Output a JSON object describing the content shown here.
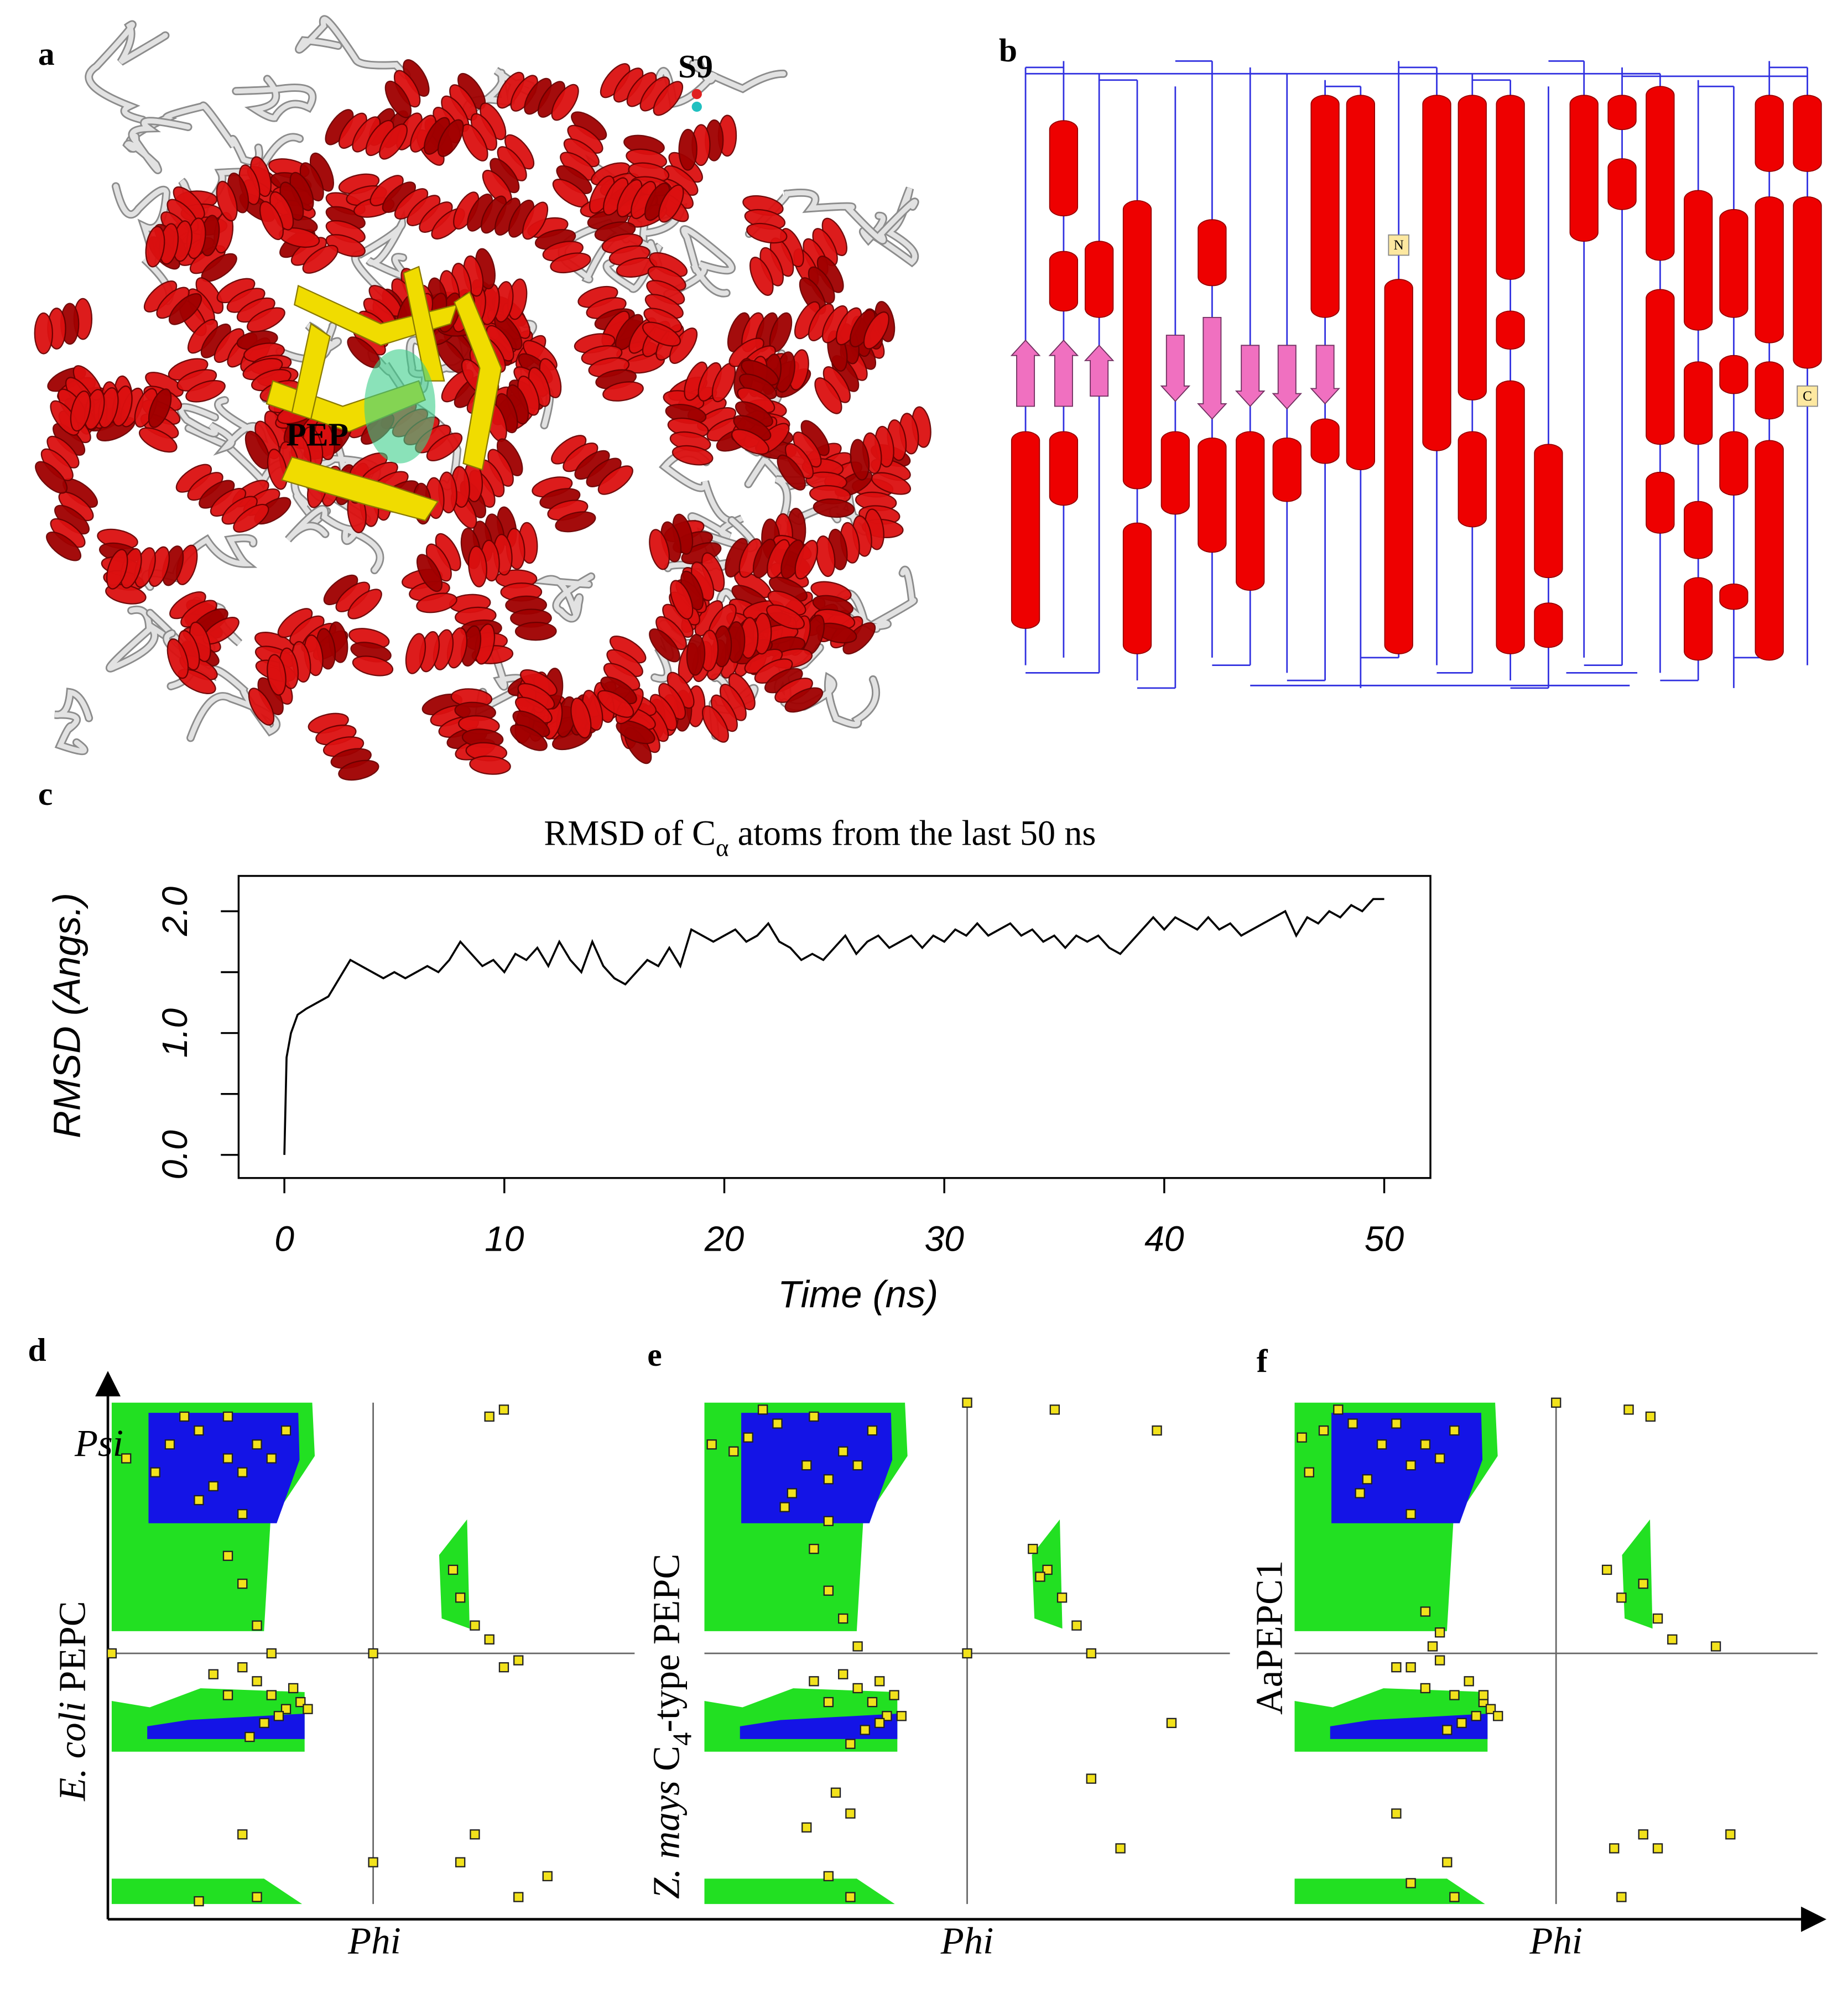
{
  "panel_labels": [
    "a",
    "b",
    "c",
    "d",
    "e",
    "f"
  ],
  "structure": {
    "labels": [
      "S9",
      "PEP"
    ]
  },
  "topology": {
    "termini": [
      "N",
      "C"
    ]
  },
  "chart_data": [
    {
      "type": "line",
      "title": [
        {
          "text": "RMSD of C"
        },
        {
          "text": "α",
          "sub": true
        },
        {
          "text": " atoms from the last 50 ns"
        }
      ],
      "xlabel": "Time (ns)",
      "ylabel": "RMSD (Angs.)",
      "color": "#000000",
      "xlim": [
        -2.08,
        52.1
      ],
      "ylim": [
        -0.19,
        2.29
      ],
      "xticks": [
        0,
        10,
        20,
        30,
        40,
        50
      ],
      "yticks": [
        {
          "value": 0,
          "label": "0.0"
        },
        {
          "value": 1,
          "label": "1.0"
        },
        {
          "value": 2,
          "label": "2.0"
        }
      ],
      "yminor_ticks": [
        0.5,
        1.5
      ],
      "x": [
        0,
        0.1,
        0.3,
        0.6,
        1,
        1.5,
        2,
        2.5,
        3,
        3.5,
        4,
        4.5,
        5,
        5.5,
        6,
        6.5,
        7,
        7.5,
        8,
        8.5,
        9,
        9.5,
        10,
        10.5,
        11,
        11.5,
        12,
        12.5,
        13,
        13.5,
        14,
        14.5,
        15,
        15.5,
        16,
        16.5,
        17,
        17.5,
        18,
        18.5,
        19,
        19.5,
        20,
        20.5,
        21,
        21.5,
        22,
        22.5,
        23,
        23.5,
        24,
        24.5,
        25,
        25.5,
        26,
        26.5,
        27,
        27.5,
        28,
        28.5,
        29,
        29.5,
        30,
        30.5,
        31,
        31.5,
        32,
        32.5,
        33,
        33.5,
        34,
        34.5,
        35,
        35.5,
        36,
        36.5,
        37,
        37.5,
        38,
        38.5,
        39,
        39.5,
        40,
        40.5,
        41,
        41.5,
        42,
        42.5,
        43,
        43.5,
        44,
        44.5,
        45,
        45.5,
        46,
        46.5,
        47,
        47.5,
        48,
        48.5,
        49,
        49.5,
        50
      ],
      "values": [
        0,
        0.8,
        1.0,
        1.15,
        1.2,
        1.25,
        1.3,
        1.45,
        1.6,
        1.55,
        1.5,
        1.45,
        1.5,
        1.45,
        1.5,
        1.55,
        1.5,
        1.6,
        1.75,
        1.65,
        1.55,
        1.6,
        1.5,
        1.65,
        1.6,
        1.7,
        1.55,
        1.75,
        1.6,
        1.5,
        1.75,
        1.55,
        1.45,
        1.4,
        1.5,
        1.6,
        1.55,
        1.7,
        1.55,
        1.85,
        1.8,
        1.75,
        1.8,
        1.85,
        1.75,
        1.8,
        1.9,
        1.75,
        1.7,
        1.6,
        1.65,
        1.6,
        1.7,
        1.8,
        1.65,
        1.75,
        1.8,
        1.7,
        1.75,
        1.8,
        1.7,
        1.8,
        1.75,
        1.85,
        1.8,
        1.9,
        1.8,
        1.85,
        1.9,
        1.8,
        1.85,
        1.75,
        1.8,
        1.7,
        1.8,
        1.75,
        1.8,
        1.7,
        1.65,
        1.75,
        1.85,
        1.95,
        1.85,
        1.95,
        1.9,
        1.85,
        1.95,
        1.85,
        1.9,
        1.8,
        1.85,
        1.9,
        1.95,
        2.0,
        1.8,
        1.95,
        1.9,
        2.0,
        1.95,
        2.05,
        2.0,
        2.1,
        2.1
      ]
    },
    {
      "type": "scatter",
      "ylabel": [
        {
          "text": "E. coli",
          "italic": true
        },
        {
          "text": " PEPC"
        }
      ],
      "yaxis_label": "Psi",
      "xlabel": "Phi",
      "color": "#f2e21c",
      "xlim": [
        -180,
        180
      ],
      "ylim": [
        -180,
        180
      ],
      "xlines": [
        0
      ],
      "ylines": [
        0
      ],
      "x": [
        -140,
        -120,
        -100,
        -90,
        -110,
        -130,
        -80,
        -70,
        -150,
        -60,
        -100,
        -120,
        -170,
        -90,
        -70,
        -60,
        -80,
        -65,
        -50,
        -90,
        -75,
        -55,
        -100,
        -85,
        -45,
        -110,
        -90,
        -80,
        -100,
        -70,
        60,
        70,
        55,
        80,
        90,
        100,
        80,
        90,
        70,
        60,
        -90,
        -80,
        100,
        0,
        0,
        -180,
        120,
        -120
      ],
      "values": [
        150,
        160,
        140,
        130,
        120,
        170,
        150,
        140,
        130,
        160,
        170,
        110,
        140,
        100,
        -30,
        -40,
        -20,
        -45,
        -35,
        -10,
        -50,
        -25,
        -30,
        -60,
        -40,
        -15,
        50,
        20,
        70,
        0,
        40,
        20,
        60,
        10,
        -10,
        -5,
        170,
        175,
        -130,
        -150,
        -130,
        -175,
        -175,
        0,
        -150,
        0,
        -160,
        -178
      ]
    },
    {
      "type": "scatter",
      "ylabel": [
        {
          "text": "Z. mays",
          "italic": true
        },
        {
          "text": " C"
        },
        {
          "text": "4",
          "sub": true
        },
        {
          "text": "-type PEPC"
        }
      ],
      "xlabel": "Phi",
      "color": "#f2e21c",
      "xlim": [
        -180,
        180
      ],
      "ylim": [
        -180,
        180
      ],
      "xlines": [
        0
      ],
      "ylines": [
        0
      ],
      "x": [
        -150,
        -130,
        -110,
        -95,
        -120,
        -140,
        -85,
        -75,
        -160,
        -65,
        -105,
        -125,
        -175,
        -95,
        -65,
        -55,
        -75,
        -60,
        -50,
        -85,
        -70,
        -60,
        -95,
        -80,
        -45,
        -105,
        -95,
        -85,
        -105,
        -75,
        45,
        55,
        50,
        65,
        75,
        85,
        60,
        130,
        -80,
        -90,
        -95,
        -80,
        0,
        0,
        -110,
        140,
        85,
        105
      ],
      "values": [
        155,
        165,
        135,
        125,
        115,
        175,
        145,
        135,
        145,
        160,
        170,
        105,
        150,
        95,
        -35,
        -45,
        -25,
        -50,
        -30,
        -15,
        -55,
        -20,
        -35,
        -65,
        -45,
        -20,
        45,
        25,
        75,
        5,
        75,
        60,
        55,
        40,
        20,
        0,
        175,
        160,
        -115,
        -100,
        -160,
        -175,
        180,
        0,
        -125,
        -50,
        -90,
        -140
      ]
    },
    {
      "type": "scatter",
      "ylabel": [
        {
          "text": "AaPEPC1"
        }
      ],
      "xlabel": "Phi",
      "color": "#f2e21c",
      "xlim": [
        -180,
        180
      ],
      "ylim": [
        -180,
        180
      ],
      "xlines": [
        0
      ],
      "ylines": [
        0
      ],
      "x": [
        -160,
        -140,
        -120,
        -100,
        -130,
        -150,
        -90,
        -80,
        -170,
        -70,
        -110,
        -135,
        -175,
        -100,
        -60,
        -50,
        -70,
        -55,
        -45,
        -80,
        -65,
        -50,
        -90,
        -75,
        -40,
        -100,
        -90,
        -80,
        -110,
        -85,
        35,
        45,
        60,
        70,
        80,
        110,
        65,
        50,
        -75,
        -70,
        -110,
        -100,
        0,
        120,
        70,
        40,
        45,
        60
      ],
      "values": [
        160,
        165,
        150,
        135,
        125,
        175,
        150,
        140,
        130,
        160,
        165,
        115,
        155,
        100,
        -20,
        -35,
        -30,
        -45,
        -40,
        -5,
        -50,
        -30,
        -25,
        -55,
        -45,
        -10,
        30,
        15,
        -10,
        5,
        60,
        40,
        50,
        25,
        10,
        5,
        170,
        175,
        -150,
        -175,
        -115,
        -165,
        180,
        -130,
        -140,
        -140,
        -175,
        -130
      ]
    }
  ]
}
